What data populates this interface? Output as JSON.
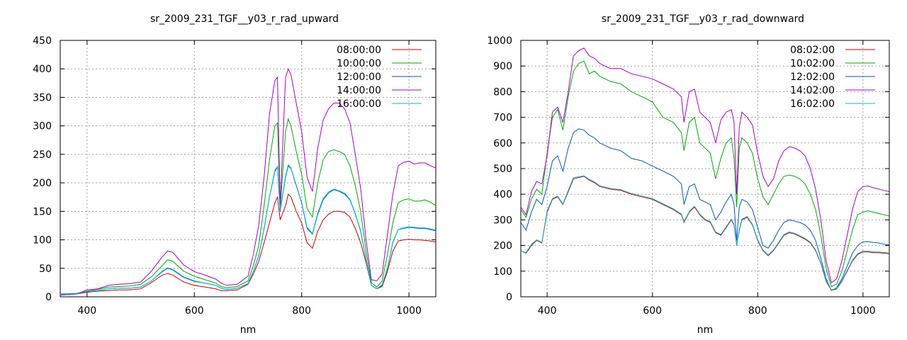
{
  "chart_data": [
    {
      "type": "line",
      "title": "sr_2009_231_TGF__y03_r_rad_upward",
      "xlabel": "nm",
      "ylabel": "",
      "xlim": [
        350,
        1050
      ],
      "ylim": [
        0,
        450
      ],
      "xticks": [
        400,
        600,
        800,
        1000
      ],
      "yticks": [
        0,
        50,
        100,
        150,
        200,
        250,
        300,
        350,
        400,
        450
      ],
      "grid": true,
      "legend_position": "top-right",
      "x": [
        350,
        380,
        400,
        420,
        440,
        460,
        480,
        500,
        520,
        540,
        550,
        560,
        580,
        600,
        620,
        640,
        650,
        660,
        680,
        700,
        710,
        720,
        730,
        740,
        750,
        755,
        760,
        770,
        775,
        780,
        790,
        800,
        810,
        820,
        830,
        840,
        850,
        860,
        870,
        880,
        890,
        900,
        910,
        920,
        930,
        940,
        950,
        960,
        970,
        980,
        990,
        1000,
        1010,
        1020,
        1030,
        1040,
        1050
      ],
      "series": [
        {
          "name": "08:00:00",
          "color": "#cc0000",
          "values": [
            3,
            5,
            8,
            10,
            11,
            12,
            12,
            14,
            25,
            38,
            41,
            38,
            26,
            20,
            17,
            14,
            11,
            11,
            12,
            22,
            40,
            62,
            95,
            130,
            165,
            175,
            135,
            160,
            180,
            175,
            150,
            130,
            95,
            85,
            115,
            135,
            145,
            150,
            150,
            148,
            140,
            120,
            95,
            60,
            20,
            14,
            18,
            45,
            80,
            98,
            100,
            101,
            100,
            100,
            99,
            98,
            96
          ]
        },
        {
          "name": "10:00:00",
          "color": "#00aa00",
          "values": [
            5,
            6,
            10,
            13,
            17,
            18,
            19,
            22,
            35,
            55,
            65,
            62,
            45,
            36,
            30,
            24,
            18,
            16,
            18,
            28,
            55,
            90,
            160,
            240,
            300,
            305,
            155,
            290,
            312,
            300,
            255,
            215,
            155,
            140,
            200,
            240,
            255,
            258,
            255,
            250,
            230,
            195,
            150,
            80,
            25,
            17,
            28,
            75,
            130,
            165,
            170,
            172,
            168,
            168,
            170,
            166,
            160
          ]
        },
        {
          "name": "12:00:00",
          "color": "#0055cc",
          "values": [
            4,
            6,
            9,
            11,
            14,
            15,
            15,
            17,
            28,
            44,
            50,
            47,
            34,
            27,
            24,
            20,
            15,
            13,
            15,
            23,
            45,
            72,
            120,
            175,
            220,
            228,
            150,
            210,
            230,
            225,
            195,
            165,
            120,
            110,
            145,
            170,
            182,
            188,
            185,
            180,
            170,
            145,
            115,
            65,
            20,
            14,
            20,
            50,
            95,
            118,
            120,
            122,
            121,
            120,
            120,
            118,
            116
          ]
        },
        {
          "name": "14:00:00",
          "color": "#aa00cc",
          "values": [
            3,
            5,
            12,
            14,
            20,
            22,
            23,
            26,
            45,
            70,
            80,
            78,
            56,
            44,
            38,
            31,
            24,
            20,
            22,
            36,
            75,
            125,
            210,
            320,
            380,
            385,
            160,
            385,
            400,
            390,
            340,
            290,
            210,
            185,
            260,
            310,
            330,
            340,
            340,
            330,
            305,
            250,
            190,
            100,
            30,
            28,
            40,
            110,
            180,
            230,
            236,
            238,
            233,
            235,
            235,
            230,
            226
          ]
        },
        {
          "name": "16:00:00",
          "color": "#00bbcc",
          "values": [
            4,
            6,
            9,
            11,
            14,
            15,
            15,
            17,
            28,
            45,
            51,
            48,
            35,
            28,
            24,
            20,
            15,
            13,
            15,
            23,
            45,
            72,
            120,
            175,
            222,
            229,
            152,
            212,
            232,
            226,
            196,
            166,
            122,
            111,
            147,
            172,
            184,
            189,
            186,
            182,
            171,
            146,
            116,
            66,
            20,
            14,
            21,
            51,
            96,
            118,
            121,
            123,
            122,
            121,
            121,
            119,
            117
          ]
        }
      ]
    },
    {
      "type": "line",
      "title": "sr_2009_231_TGF__y03_r_rad_downward",
      "xlabel": "nm",
      "ylabel": "",
      "xlim": [
        350,
        1050
      ],
      "ylim": [
        0,
        1000
      ],
      "xticks": [
        400,
        600,
        800,
        1000
      ],
      "yticks": [
        0,
        100,
        200,
        300,
        400,
        500,
        600,
        700,
        800,
        900,
        1000
      ],
      "grid": true,
      "legend_position": "top-right",
      "x": [
        350,
        360,
        370,
        380,
        390,
        400,
        410,
        420,
        430,
        440,
        450,
        460,
        470,
        480,
        490,
        500,
        520,
        540,
        560,
        580,
        600,
        620,
        640,
        655,
        660,
        670,
        680,
        690,
        700,
        710,
        720,
        730,
        740,
        750,
        755,
        760,
        765,
        770,
        780,
        790,
        800,
        810,
        820,
        830,
        840,
        850,
        860,
        870,
        880,
        890,
        900,
        910,
        920,
        930,
        940,
        950,
        960,
        970,
        980,
        990,
        1000,
        1010,
        1020,
        1030,
        1040,
        1050
      ],
      "series": [
        {
          "name": "08:02:00",
          "color": "#cc0000",
          "values": [
            180,
            170,
            200,
            220,
            210,
            330,
            380,
            390,
            360,
            410,
            460,
            465,
            470,
            455,
            445,
            430,
            420,
            415,
            400,
            390,
            380,
            360,
            340,
            320,
            290,
            330,
            350,
            320,
            300,
            290,
            250,
            240,
            270,
            300,
            280,
            200,
            260,
            300,
            310,
            280,
            220,
            180,
            160,
            180,
            210,
            240,
            250,
            245,
            235,
            225,
            210,
            180,
            130,
            60,
            25,
            30,
            60,
            100,
            140,
            165,
            175,
            175,
            172,
            172,
            170,
            168
          ]
        },
        {
          "name": "10:02:00",
          "color": "#00aa00",
          "values": [
            340,
            310,
            380,
            420,
            400,
            560,
            700,
            730,
            650,
            780,
            880,
            910,
            920,
            870,
            880,
            860,
            840,
            830,
            800,
            780,
            760,
            700,
            680,
            640,
            570,
            680,
            700,
            600,
            580,
            560,
            460,
            540,
            600,
            620,
            540,
            350,
            580,
            620,
            600,
            560,
            460,
            390,
            360,
            400,
            440,
            470,
            475,
            470,
            460,
            440,
            400,
            340,
            240,
            110,
            40,
            50,
            100,
            180,
            260,
            320,
            330,
            335,
            330,
            325,
            320,
            315
          ]
        },
        {
          "name": "12:02:00",
          "color": "#0055cc",
          "values": [
            290,
            260,
            330,
            380,
            360,
            430,
            530,
            550,
            490,
            580,
            640,
            655,
            650,
            630,
            620,
            600,
            580,
            570,
            540,
            530,
            510,
            490,
            470,
            440,
            360,
            430,
            440,
            380,
            370,
            360,
            300,
            330,
            370,
            400,
            360,
            220,
            350,
            380,
            370,
            340,
            270,
            200,
            190,
            220,
            260,
            290,
            300,
            295,
            290,
            280,
            260,
            220,
            150,
            70,
            25,
            35,
            70,
            120,
            170,
            200,
            215,
            215,
            212,
            210,
            205,
            202
          ]
        },
        {
          "name": "14:02:00",
          "color": "#aa00cc",
          "values": [
            350,
            320,
            410,
            450,
            440,
            550,
            720,
            740,
            680,
            800,
            940,
            960,
            970,
            940,
            930,
            910,
            890,
            890,
            870,
            860,
            850,
            830,
            810,
            780,
            680,
            800,
            810,
            720,
            700,
            680,
            600,
            690,
            720,
            730,
            680,
            400,
            660,
            720,
            700,
            670,
            560,
            470,
            430,
            460,
            530,
            570,
            585,
            580,
            570,
            550,
            500,
            420,
            300,
            140,
            55,
            70,
            140,
            240,
            340,
            410,
            430,
            432,
            425,
            420,
            415,
            410
          ]
        },
        {
          "name": "16:02:00",
          "color": "#00bbcc",
          "values": [
            180,
            172,
            205,
            222,
            212,
            335,
            383,
            393,
            362,
            415,
            465,
            468,
            472,
            458,
            448,
            433,
            423,
            418,
            403,
            393,
            383,
            363,
            343,
            323,
            293,
            333,
            353,
            323,
            303,
            293,
            253,
            243,
            273,
            303,
            283,
            203,
            263,
            303,
            313,
            283,
            223,
            183,
            163,
            183,
            213,
            243,
            253,
            248,
            238,
            228,
            213,
            183,
            133,
            63,
            27,
            32,
            63,
            103,
            143,
            168,
            178,
            178,
            175,
            175,
            173,
            171
          ]
        }
      ]
    }
  ]
}
